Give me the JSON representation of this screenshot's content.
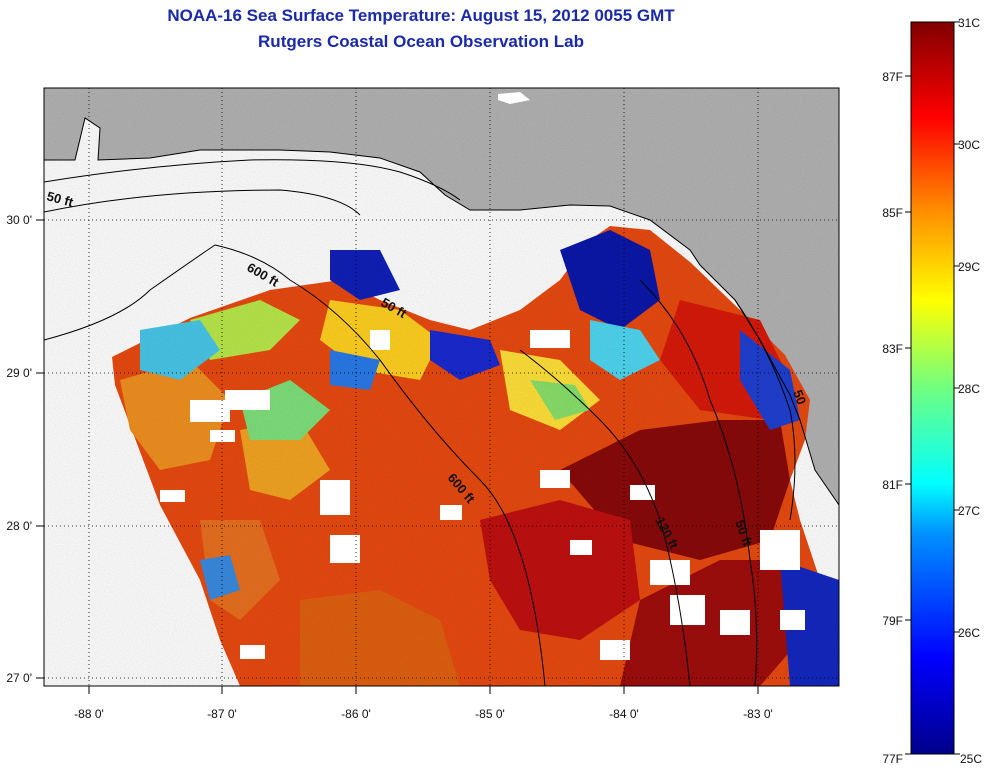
{
  "title_line1": "NOAA-16 Sea Surface Temperature:  August 15, 2012 0055 GMT",
  "title_line2": "Rutgers Coastal Ocean Observation Lab",
  "colors": {
    "land": "#b3b3b3",
    "cloud": "#ffffff",
    "frame": "#000000",
    "title": "#1a2aa8"
  },
  "axes": {
    "x_ticks": [
      "-88 0'",
      "-87 0'",
      "-86 0'",
      "-85 0'",
      "-84 0'",
      "-83 0'"
    ],
    "y_ticks": [
      "30 0'",
      "29 0'",
      "28 0'",
      "27 0'"
    ],
    "lon_range": [
      -88.33,
      -82.4
    ],
    "lat_range": [
      26.97,
      30.92
    ]
  },
  "contours": {
    "labels": [
      "50 ft",
      "600 ft",
      "50 ft",
      "600 ft",
      "120 ft",
      "50 ft",
      "50"
    ]
  },
  "colorbar": {
    "celsius": [
      "31C",
      "30C",
      "29C",
      "28C",
      "27C",
      "26C",
      "25C"
    ],
    "fahrenheit": [
      "87F",
      "85F",
      "83F",
      "81F",
      "79F",
      "77F"
    ],
    "range_c": [
      25,
      31
    ]
  }
}
